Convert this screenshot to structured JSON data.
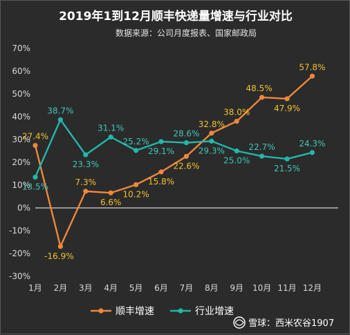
{
  "chart_data": {
    "type": "line",
    "title": "2019年1到12月顺丰快递量增速与行业对比",
    "subtitle": "数据来源：公司月度报表、国家邮政局",
    "categories": [
      "1月",
      "2月",
      "3月",
      "4月",
      "5月",
      "6月",
      "7月",
      "8月",
      "9月",
      "10月",
      "11月",
      "12月"
    ],
    "y_ticks": [
      "70%",
      "60%",
      "50%",
      "40%",
      "30%",
      "20%",
      "10%",
      "0%",
      "-10%",
      "-20%",
      "-30%"
    ],
    "ylim": [
      -30,
      70
    ],
    "grid": false,
    "legend_position": "bottom",
    "series": [
      {
        "name": "顺丰增速",
        "color": "#f0883a",
        "label_color": "#f2c12e",
        "values": [
          27.4,
          -16.9,
          7.3,
          6.6,
          10.2,
          15.8,
          22.6,
          32.8,
          38.0,
          48.5,
          47.9,
          57.8
        ],
        "labels": [
          "27.4%",
          "-16.9%",
          "7.3%",
          "6.6%",
          "10.2%",
          "15.8%",
          "22.6%",
          "32.8%",
          "38.0%",
          "48.5%",
          "47.9%",
          "57.8%"
        ]
      },
      {
        "name": "行业增速",
        "color": "#22b8ab",
        "label_color": "#3fc6b9",
        "values": [
          13.5,
          38.7,
          23.3,
          31.1,
          25.2,
          29.1,
          28.6,
          29.3,
          25.0,
          22.7,
          21.5,
          24.3
        ],
        "labels": [
          "13.5%",
          "38.7%",
          "23.3%",
          "31.1%",
          "25.2%",
          "29.1%",
          "28.6%",
          "29.3%",
          "25.0%",
          "22.7%",
          "21.5%",
          "24.3%"
        ]
      }
    ]
  },
  "watermark": {
    "icon": "snowball-icon",
    "text": "雪球：西米农谷1907"
  }
}
